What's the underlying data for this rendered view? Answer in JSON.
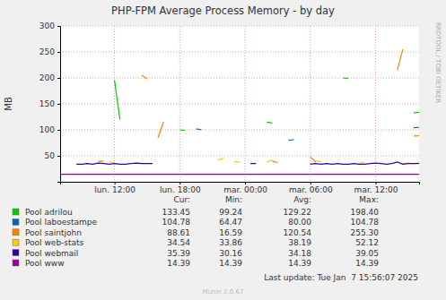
{
  "chart_data": {
    "type": "line",
    "title": "PHP-FPM Average Process Memory - by day",
    "y_label": "MB",
    "annotations": [
      "RRDTOOL / TOBI OETIKER",
      "Last update: Tue Jan  7 15:56:07 2025",
      "Munin 2.0.67"
    ],
    "x": [
      7,
      7.5,
      8,
      8.5,
      9,
      9.5,
      10,
      10.5,
      11,
      11.5,
      12,
      12.5,
      13,
      13.5,
      14,
      14.5,
      15,
      15.5,
      16,
      16.5,
      17,
      17.5,
      18,
      18.5,
      19,
      19.5,
      20,
      20.5,
      21,
      21.5,
      22,
      22.5,
      23,
      23.5,
      24,
      24.5,
      25,
      25.5,
      26,
      26.5,
      27,
      27.5,
      28,
      28.5,
      29,
      29.5,
      30,
      30.5,
      31,
      31.5,
      32,
      32.5,
      33,
      33.5,
      34,
      34.5,
      35,
      35.5,
      36,
      36.5,
      37,
      37.5,
      38,
      38.5,
      39,
      39.5,
      40
    ],
    "xlim": [
      7,
      40
    ],
    "xticks": [
      {
        "value": 12,
        "label": "lun. 12:00"
      },
      {
        "value": 18,
        "label": "lun. 18:00"
      },
      {
        "value": 24,
        "label": "mar. 00:00"
      },
      {
        "value": 30,
        "label": "mar. 06:00"
      },
      {
        "value": 36,
        "label": "mar. 12:00"
      }
    ],
    "ylim": [
      0,
      300
    ],
    "yticks": [
      50,
      100,
      150,
      200,
      250,
      300
    ],
    "grid": true,
    "legend": "bottom",
    "stats_columns": [
      "Cur:",
      "Min:",
      "Avg:",
      "Max:"
    ],
    "series": [
      {
        "name": "Pool adrilou",
        "color": "#00cc00",
        "cur": 133.45,
        "min": 99.24,
        "avg": 129.22,
        "max": 198.4,
        "values": [
          null,
          null,
          null,
          null,
          null,
          null,
          null,
          null,
          null,
          null,
          195,
          120,
          null,
          null,
          null,
          null,
          null,
          null,
          null,
          null,
          null,
          null,
          100,
          99,
          null,
          null,
          null,
          null,
          null,
          null,
          null,
          null,
          null,
          null,
          null,
          null,
          null,
          null,
          115,
          113,
          null,
          null,
          null,
          null,
          null,
          null,
          null,
          null,
          null,
          null,
          null,
          null,
          200,
          199,
          null,
          null,
          null,
          null,
          null,
          null,
          null,
          null,
          null,
          null,
          null,
          133,
          133.45
        ]
      },
      {
        "name": "Pool laboestampe",
        "color": "#0066b3",
        "cur": 104.78,
        "min": 64.47,
        "avg": 80.0,
        "max": 104.78,
        "values": [
          null,
          null,
          null,
          null,
          null,
          null,
          null,
          null,
          null,
          null,
          null,
          null,
          null,
          null,
          null,
          null,
          null,
          null,
          null,
          null,
          null,
          null,
          null,
          null,
          null,
          102,
          100,
          null,
          null,
          null,
          null,
          null,
          null,
          null,
          null,
          null,
          null,
          null,
          null,
          null,
          null,
          null,
          80,
          81,
          null,
          null,
          null,
          null,
          null,
          null,
          null,
          null,
          null,
          null,
          null,
          null,
          null,
          null,
          null,
          null,
          null,
          null,
          null,
          null,
          null,
          104,
          104.78
        ]
      },
      {
        "name": "Pool saintjohn",
        "color": "#ff8000",
        "cur": 88.61,
        "min": 16.59,
        "avg": 120.54,
        "max": 255.3,
        "values": [
          null,
          null,
          null,
          null,
          null,
          null,
          null,
          39,
          40,
          null,
          null,
          null,
          null,
          null,
          null,
          205,
          198,
          null,
          85,
          115,
          null,
          null,
          null,
          null,
          null,
          null,
          null,
          null,
          null,
          null,
          null,
          null,
          null,
          null,
          null,
          null,
          null,
          null,
          null,
          40,
          37,
          null,
          null,
          null,
          null,
          null,
          48,
          38,
          null,
          null,
          null,
          null,
          null,
          null,
          null,
          null,
          null,
          null,
          null,
          null,
          null,
          null,
          215,
          255,
          null,
          88,
          88.61
        ]
      },
      {
        "name": "Pool web-stats",
        "color": "#ffcc00",
        "cur": 34.54,
        "min": 33.86,
        "avg": 38.19,
        "max": 52.12,
        "values": [
          null,
          null,
          null,
          null,
          null,
          null,
          null,
          null,
          null,
          38,
          37,
          null,
          null,
          null,
          36,
          35,
          null,
          null,
          null,
          null,
          null,
          null,
          null,
          null,
          null,
          null,
          null,
          null,
          null,
          42,
          45,
          null,
          39,
          38,
          null,
          null,
          null,
          null,
          38,
          42,
          null,
          null,
          null,
          null,
          null,
          null,
          null,
          40,
          39,
          null,
          null,
          null,
          null,
          null,
          null,
          36,
          37,
          null,
          null,
          null,
          null,
          null,
          null,
          35,
          36,
          35,
          34.54
        ]
      },
      {
        "name": "Pool webmail",
        "color": "#330099",
        "cur": 35.39,
        "min": 30.16,
        "avg": 34.18,
        "max": 39.05,
        "values": [
          null,
          null,
          null,
          34,
          34,
          35,
          34,
          36,
          35,
          34,
          35,
          34,
          34,
          35,
          36,
          35,
          35,
          35,
          null,
          null,
          null,
          null,
          null,
          null,
          null,
          null,
          null,
          null,
          null,
          null,
          null,
          null,
          null,
          null,
          null,
          35,
          35,
          null,
          null,
          null,
          null,
          null,
          null,
          null,
          null,
          null,
          34,
          35,
          34,
          35,
          34,
          35,
          34,
          34,
          35,
          34,
          34,
          35,
          36,
          35,
          34,
          35,
          38,
          34,
          35,
          35,
          35.39
        ]
      },
      {
        "name": "Pool www",
        "color": "#990099",
        "cur": 14.39,
        "min": 14.39,
        "avg": 14.39,
        "max": 14.39,
        "values": [
          14.39,
          14.39,
          14.39,
          14.39,
          14.39,
          14.39,
          14.39,
          14.39,
          14.39,
          14.39,
          14.39,
          14.39,
          14.39,
          14.39,
          14.39,
          14.39,
          14.39,
          14.39,
          14.39,
          14.39,
          14.39,
          14.39,
          14.39,
          14.39,
          14.39,
          14.39,
          14.39,
          14.39,
          14.39,
          14.39,
          14.39,
          14.39,
          14.39,
          14.39,
          14.39,
          14.39,
          14.39,
          14.39,
          14.39,
          14.39,
          14.39,
          14.39,
          14.39,
          14.39,
          14.39,
          14.39,
          14.39,
          14.39,
          14.39,
          14.39,
          14.39,
          14.39,
          14.39,
          14.39,
          14.39,
          14.39,
          14.39,
          14.39,
          14.39,
          14.39,
          14.39,
          14.39,
          14.39,
          14.39,
          14.39,
          14.39,
          14.39
        ]
      }
    ]
  }
}
